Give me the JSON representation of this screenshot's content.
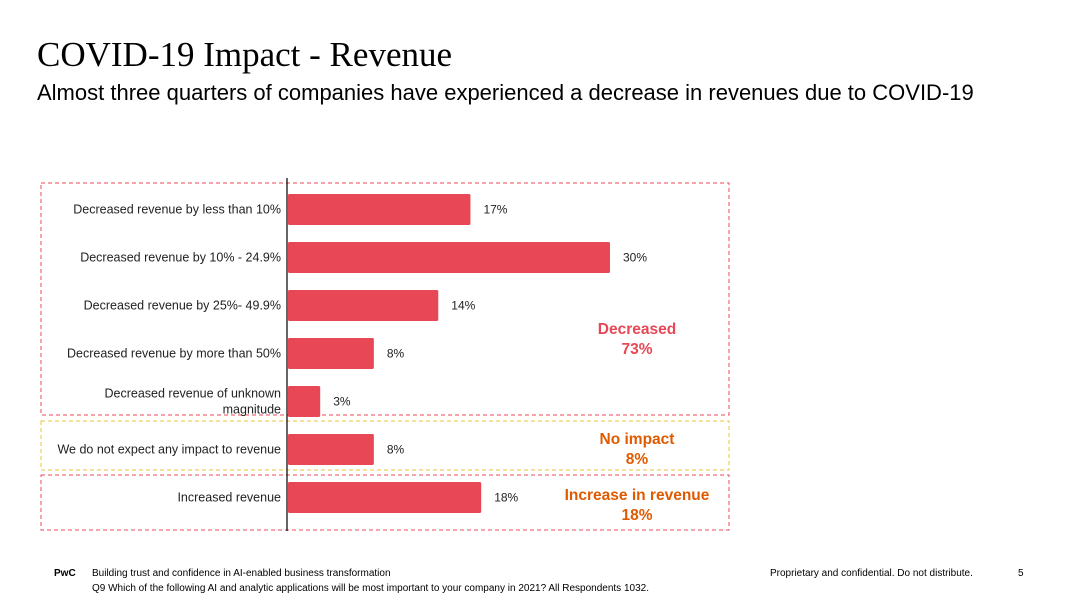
{
  "header": {
    "title": "COVID-19 Impact - Revenue",
    "subtitle": "Almost three quarters of companies have experienced a decrease in revenues due to COVID-19"
  },
  "chart_data": {
    "type": "bar",
    "orientation": "horizontal",
    "title": "",
    "xlabel": "",
    "ylabel": "",
    "xlim": [
      0,
      30
    ],
    "grid": false,
    "legend": "none",
    "bar_color": "#e84856",
    "categories": [
      [
        "Decreased revenue by less than 10%"
      ],
      [
        "Decreased revenue by 10% - 24.9%"
      ],
      [
        "Decreased revenue by 25%- 49.9%"
      ],
      [
        "Decreased revenue by more than 50%"
      ],
      [
        "Decreased revenue of unknown",
        "magnitude"
      ],
      [
        "We do not expect any impact to revenue"
      ],
      [
        "Increased revenue"
      ]
    ],
    "values": [
      17,
      30,
      14,
      8,
      3,
      8,
      18
    ],
    "value_labels": [
      "17%",
      "30%",
      "14%",
      "8%",
      "3%",
      "8%",
      "18%"
    ],
    "groups": [
      {
        "label_lines": [
          "Decreased",
          "73%"
        ],
        "color": "#e84856",
        "border_color": "#e84856"
      },
      {
        "label_lines": [
          "No impact",
          "8%"
        ],
        "color": "#e05a00",
        "border_color": "#e8c33a"
      },
      {
        "label_lines": [
          "Increase in revenue",
          "18%"
        ],
        "color": "#e05a00",
        "border_color": "#e84856"
      }
    ]
  },
  "footer": {
    "brand": "PwC",
    "tagline": "Building trust and confidence in AI-enabled business transformation",
    "question": "Q9 Which of the following AI and analytic applications will be most important to your company in 2021? All Respondents 1032.",
    "confidential": "Proprietary and confidential. Do not distribute.",
    "page": "5"
  }
}
